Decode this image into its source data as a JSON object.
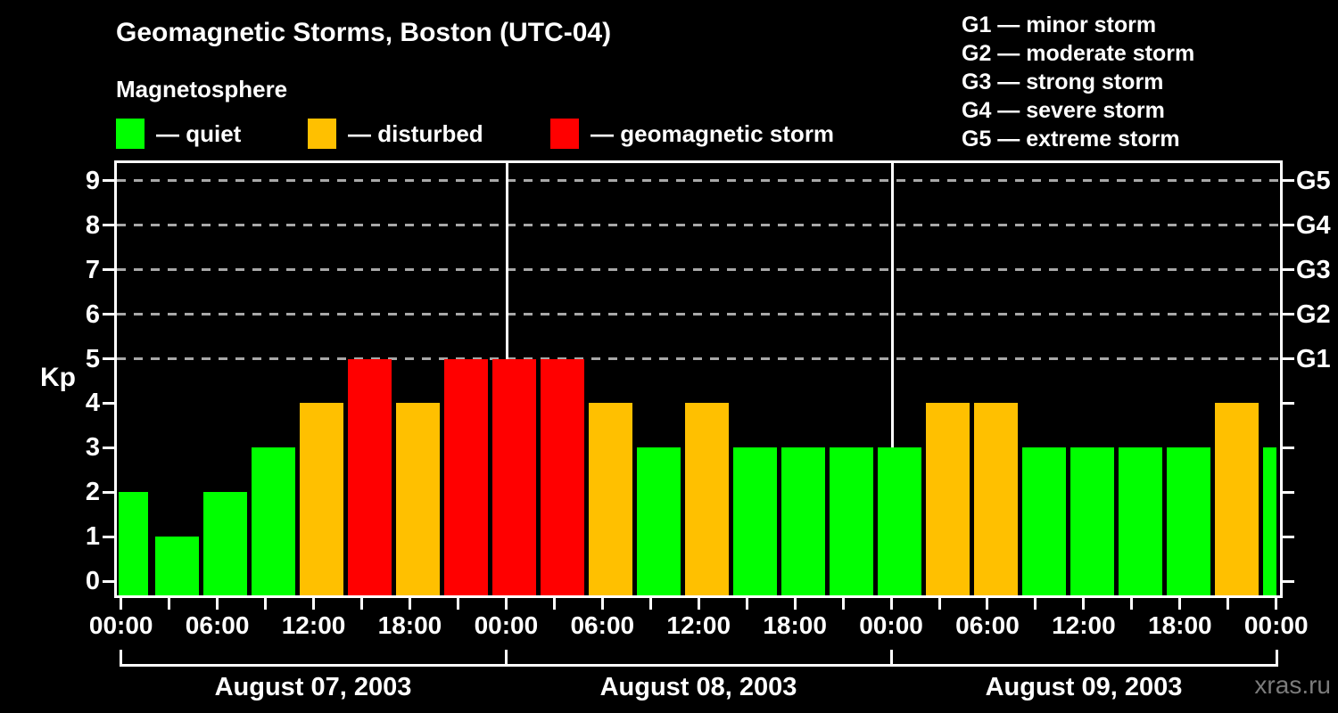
{
  "title": "Geomagnetic Storms, Boston (UTC-04)",
  "subtitle": "Magnetosphere",
  "legend": {
    "items": [
      {
        "key": "quiet",
        "label": "— quiet"
      },
      {
        "key": "disturbed",
        "label": "— disturbed"
      },
      {
        "key": "storm",
        "label": "— geomagnetic storm"
      }
    ]
  },
  "g_scale_legend": [
    "G1 — minor storm",
    "G2 — moderate storm",
    "G3 — strong storm",
    "G4 — severe storm",
    "G5 — extreme storm"
  ],
  "colors": {
    "quiet": "#00ff00",
    "disturbed": "#ffc000",
    "storm": "#ff0000",
    "grid": "#a8a8a8",
    "axis": "#ffffff",
    "watermark": "#7b7b7b",
    "background": "#000000"
  },
  "y_axis": {
    "label": "Kp",
    "ticks": [
      0,
      1,
      2,
      3,
      4,
      5,
      6,
      7,
      8,
      9
    ]
  },
  "right_axis": {
    "labels": [
      "G1",
      "G2",
      "G3",
      "G4",
      "G5"
    ],
    "levels": [
      5,
      6,
      7,
      8,
      9
    ]
  },
  "x_axis": {
    "time_labels": [
      "00:00",
      "06:00",
      "12:00",
      "18:00",
      "00:00",
      "06:00",
      "12:00",
      "18:00",
      "00:00",
      "06:00",
      "12:00",
      "18:00",
      "00:00"
    ],
    "dates": [
      "August 07, 2003",
      "August 08, 2003",
      "August 09, 2003"
    ]
  },
  "watermark": "xras.ru",
  "chart_data": {
    "type": "bar",
    "title": "Geomagnetic Storms, Boston (UTC-04)",
    "ylabel": "Kp",
    "ylim": [
      0,
      9.4
    ],
    "bin_hours": 3,
    "grid": "dashed horizontal lines at Kp 5-9 (G1-G5)",
    "days": [
      {
        "date": "August 07, 2003",
        "kp": [
          2,
          1,
          2,
          3,
          4,
          5,
          4,
          5
        ]
      },
      {
        "date": "August 08, 2003",
        "kp": [
          5,
          5,
          4,
          3,
          4,
          3,
          3,
          3
        ]
      },
      {
        "date": "August 09, 2003",
        "kp": [
          3,
          4,
          4,
          3,
          3,
          3,
          3,
          4
        ]
      }
    ],
    "next_period_kp": 3,
    "bars": [
      {
        "v": 2,
        "state": "quiet"
      },
      {
        "v": 1,
        "state": "quiet"
      },
      {
        "v": 2,
        "state": "quiet"
      },
      {
        "v": 3,
        "state": "quiet"
      },
      {
        "v": 4,
        "state": "disturbed"
      },
      {
        "v": 5,
        "state": "storm"
      },
      {
        "v": 4,
        "state": "disturbed"
      },
      {
        "v": 5,
        "state": "storm"
      },
      {
        "v": 5,
        "state": "storm"
      },
      {
        "v": 5,
        "state": "storm"
      },
      {
        "v": 4,
        "state": "disturbed"
      },
      {
        "v": 3,
        "state": "quiet"
      },
      {
        "v": 4,
        "state": "disturbed"
      },
      {
        "v": 3,
        "state": "quiet"
      },
      {
        "v": 3,
        "state": "quiet"
      },
      {
        "v": 3,
        "state": "quiet"
      },
      {
        "v": 3,
        "state": "quiet"
      },
      {
        "v": 4,
        "state": "disturbed"
      },
      {
        "v": 4,
        "state": "disturbed"
      },
      {
        "v": 3,
        "state": "quiet"
      },
      {
        "v": 3,
        "state": "quiet"
      },
      {
        "v": 3,
        "state": "quiet"
      },
      {
        "v": 3,
        "state": "quiet"
      },
      {
        "v": 4,
        "state": "disturbed"
      },
      {
        "v": 3,
        "state": "quiet"
      }
    ],
    "state_thresholds": {
      "quiet": "Kp ≤ 3",
      "disturbed": "Kp = 4",
      "storm": "Kp ≥ 5"
    }
  }
}
